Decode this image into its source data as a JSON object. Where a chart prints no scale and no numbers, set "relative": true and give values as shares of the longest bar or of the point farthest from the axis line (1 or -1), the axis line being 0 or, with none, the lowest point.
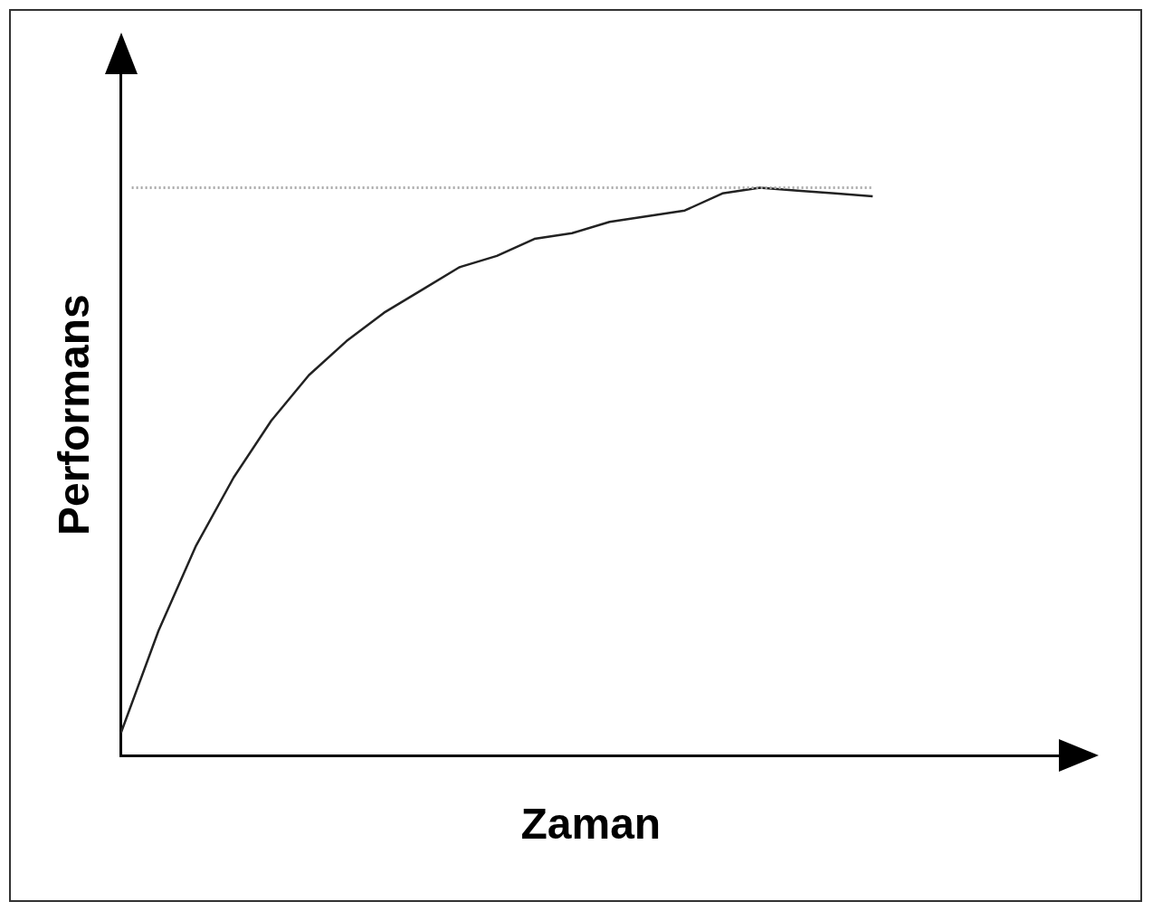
{
  "chart_data": {
    "type": "line",
    "xlabel": "Zaman",
    "ylabel": "Performans",
    "relative": true,
    "grid": false,
    "legend": false,
    "marker": "none",
    "line_style": "solid",
    "categories": [
      null,
      null,
      null,
      null,
      null,
      null,
      null,
      null,
      null,
      null,
      null,
      null,
      null,
      null,
      null,
      null,
      null,
      null,
      null,
      null,
      null,
      null,
      null,
      null,
      null,
      null
    ],
    "series": [
      {
        "color": "#222222",
        "values": [
          0.04,
          0.22,
          0.37,
          0.49,
          0.59,
          0.67,
          0.73,
          0.78,
          0.82,
          0.86,
          0.88,
          0.91,
          0.92,
          0.94,
          0.95,
          0.96,
          0.99,
          1,
          0.995,
          0.99,
          0.985,
          null,
          null,
          null,
          null,
          null
        ]
      }
    ],
    "ref_lines": [
      {
        "axis": "y",
        "value": 1,
        "color": "#aaaaaa",
        "line_style": "dotted"
      }
    ]
  }
}
